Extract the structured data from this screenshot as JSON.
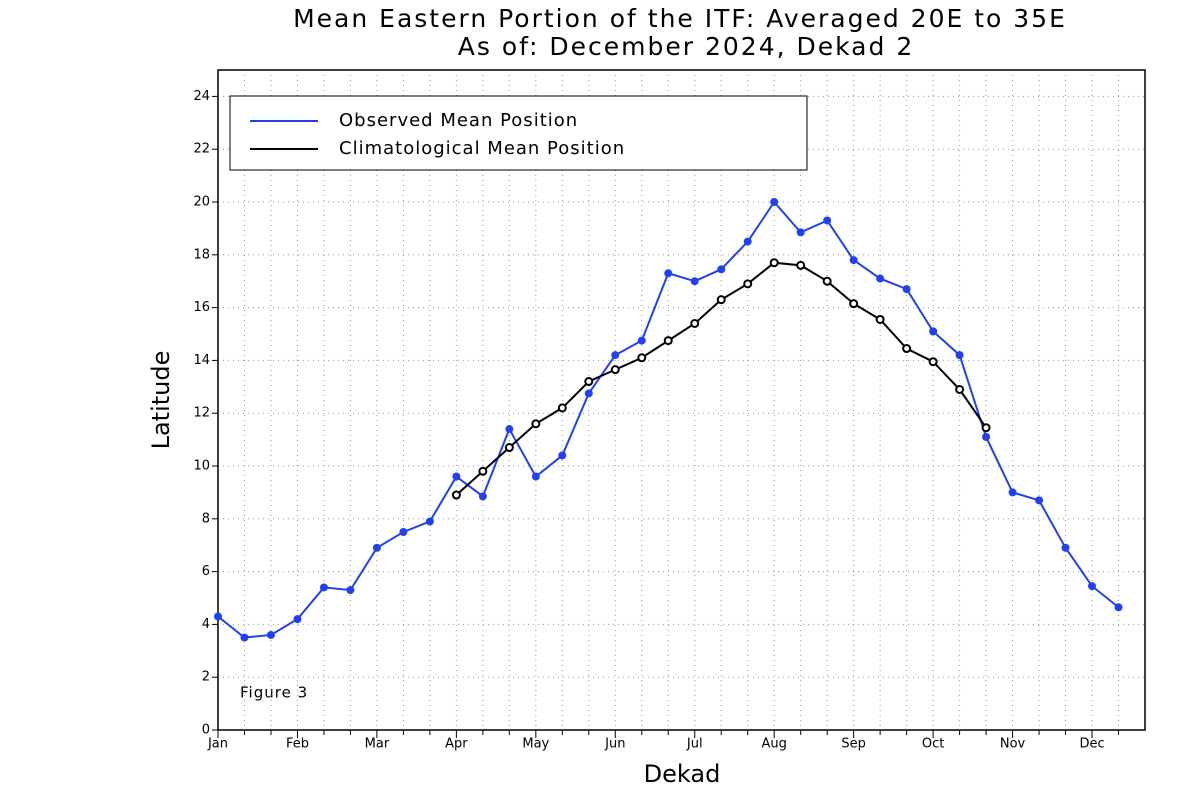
{
  "chart_data": {
    "type": "line",
    "title": "Mean Eastern Portion of the ITF: Averaged 20E to 35E",
    "subtitle": "As of: December 2024, Dekad 2",
    "x_label": "Dekad",
    "y_label": "Latitude",
    "annotation": "Figure 3",
    "categories": [
      "Jan",
      null,
      null,
      "Feb",
      null,
      null,
      "Mar",
      null,
      null,
      "Apr",
      null,
      null,
      "May",
      null,
      null,
      "Jun",
      null,
      null,
      "Jul",
      null,
      null,
      "Aug",
      null,
      null,
      "Sep",
      null,
      null,
      "Oct",
      null,
      null,
      "Nov",
      null,
      null,
      "Dec",
      null
    ],
    "series": [
      {
        "name": "Observed Mean Position",
        "color": "#2141f0",
        "values": [
          4.3,
          3.5,
          3.6,
          4.2,
          5.4,
          5.3,
          6.9,
          7.5,
          7.9,
          9.6,
          8.85,
          11.4,
          9.6,
          10.4,
          12.75,
          14.2,
          14.75,
          17.3,
          17.0,
          17.45,
          18.5,
          20.0,
          18.85,
          19.3,
          17.8,
          17.1,
          16.7,
          15.1,
          14.2,
          11.1,
          9.0,
          8.7,
          6.9,
          5.45,
          4.65
        ]
      },
      {
        "name": "Climatological Mean Position",
        "color": "#000000",
        "values": [
          null,
          null,
          null,
          null,
          null,
          null,
          null,
          null,
          null,
          8.9,
          9.8,
          10.7,
          11.6,
          12.2,
          13.2,
          13.65,
          14.1,
          14.75,
          15.4,
          16.3,
          16.9,
          17.7,
          17.6,
          17.0,
          16.15,
          15.55,
          14.45,
          13.95,
          12.9,
          11.45,
          null,
          null,
          null,
          null,
          null
        ]
      }
    ],
    "ylim": [
      0,
      25
    ],
    "yticks": [
      0,
      2,
      4,
      6,
      8,
      10,
      12,
      14,
      16,
      18,
      20,
      22,
      24
    ],
    "grid": true,
    "legend": "upper left"
  }
}
